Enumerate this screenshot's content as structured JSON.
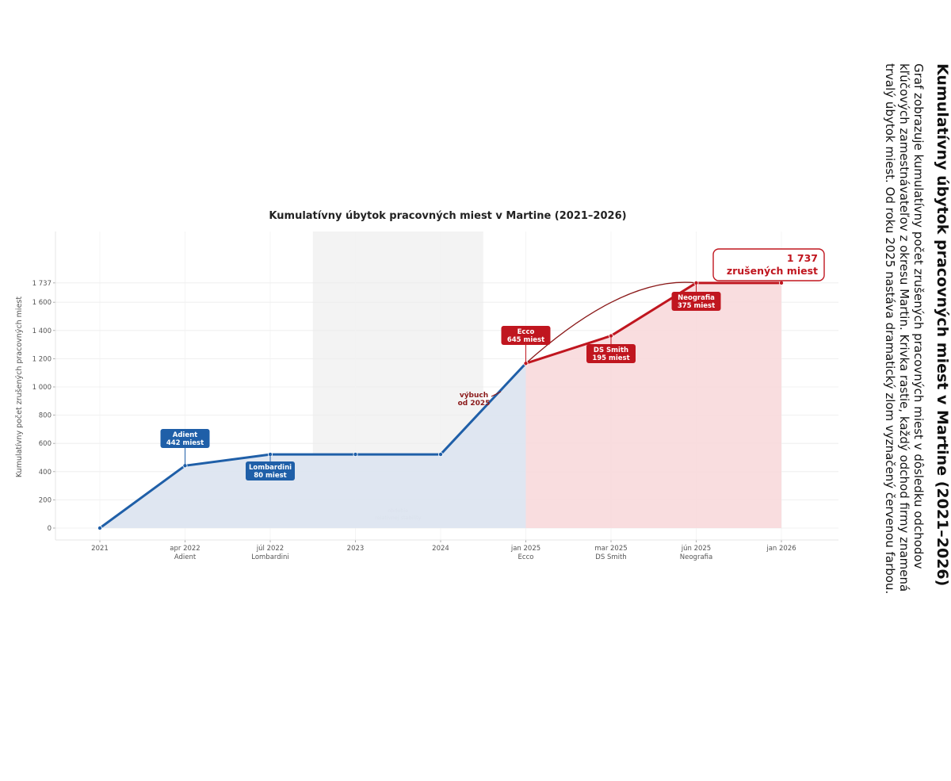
{
  "side": {
    "title": "Kumulatívny úbytok pracovných miest v Martine (2021–2026)",
    "description": "Graf zobrazuje kumulatívny počet zrušených pracovných miest v dôsledku odchodov kľúčových zamestnávateľov z okresu Martin. Krivka rastie, každý odchod firmy znamená trvalý úbytok miest. Od roku 2025 nastáva dramatický zlom vyznačený červenou farbou."
  },
  "colors": {
    "blue": "#1f5fa8",
    "red": "#c0161f",
    "blue_fill": "#dde5f0",
    "red_fill": "#f8d9dc",
    "band": "#f3f3f3"
  },
  "chart_data": {
    "type": "line",
    "title": "Kumulatívny úbytok pracovných miest v Martine (2021–2026)",
    "xlabel": "",
    "ylabel": "Kumulatívny počet zrušených pracovných miest",
    "ylim": [
      -80,
      2100
    ],
    "yticks": [
      0,
      200,
      400,
      600,
      800,
      1000,
      1200,
      1400,
      1600,
      1737
    ],
    "ytick_labels": [
      "0",
      "200",
      "400",
      "600",
      "800",
      "1 000",
      "1 200",
      "1 400",
      "1 600",
      "1 737"
    ],
    "x_tick_labels": [
      [
        "2021",
        ""
      ],
      [
        "apr 2022",
        "Adient"
      ],
      [
        "júl 2022",
        "Lombardini"
      ],
      [
        "2023",
        ""
      ],
      [
        "2024",
        ""
      ],
      [
        "jan 2025",
        "Ecco"
      ],
      [
        "mar 2025",
        "DS Smith"
      ],
      [
        "jún 2025",
        "Neografia"
      ],
      [
        "jan 2026",
        ""
      ]
    ],
    "grid": true,
    "series": [
      {
        "color": "#1f5fa8",
        "points": [
          [
            0,
            0
          ],
          [
            1,
            442
          ],
          [
            2,
            522
          ],
          [
            3,
            522
          ],
          [
            4,
            522
          ],
          [
            5,
            1167
          ]
        ]
      },
      {
        "color": "#c0161f",
        "points": [
          [
            5,
            1167
          ],
          [
            6,
            1362
          ],
          [
            7,
            1737
          ],
          [
            8,
            1737
          ]
        ]
      }
    ],
    "events": [
      {
        "name": "Adient",
        "text": "442 miest",
        "value": 442,
        "x": 1,
        "color": "#1f5fa8"
      },
      {
        "name": "Lombardini",
        "text": "80 miest",
        "value": 80,
        "x": 2,
        "color": "#1f5fa8"
      },
      {
        "name": "Ecco",
        "text": "645 miest",
        "value": 645,
        "x": 5,
        "color": "#c0161f"
      },
      {
        "name": "DS Smith",
        "text": "195 miest",
        "value": 195,
        "x": 6,
        "color": "#c0161f"
      },
      {
        "name": "Neografia",
        "text": "375 miest",
        "value": 375,
        "x": 7,
        "color": "#c0161f"
      }
    ],
    "period_band": {
      "x_from": 2.5,
      "x_to": 4.5,
      "line1": "obdobie",
      "line2": "relatívnej stability"
    },
    "annotations": {
      "burst": [
        "výbuch",
        "od 2025"
      ],
      "total": [
        "1 737",
        "zrušených miest"
      ]
    }
  }
}
